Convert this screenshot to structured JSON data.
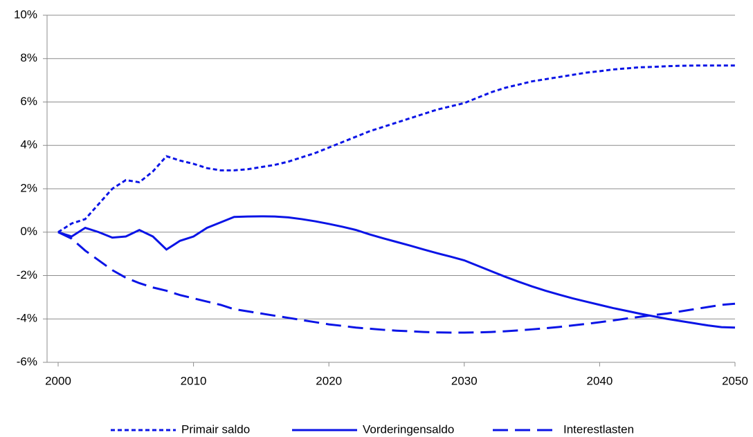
{
  "chart_data": {
    "type": "line",
    "x": [
      2000,
      2001,
      2002,
      2003,
      2004,
      2005,
      2006,
      2007,
      2008,
      2009,
      2010,
      2011,
      2012,
      2013,
      2014,
      2015,
      2016,
      2017,
      2018,
      2019,
      2020,
      2021,
      2022,
      2023,
      2024,
      2025,
      2026,
      2027,
      2028,
      2029,
      2030,
      2031,
      2032,
      2033,
      2034,
      2035,
      2036,
      2037,
      2038,
      2039,
      2040,
      2041,
      2042,
      2043,
      2044,
      2045,
      2046,
      2047,
      2048,
      2049,
      2050
    ],
    "series": [
      {
        "name": "Primair saldo",
        "color": "#0a14e6",
        "dash": "dotted",
        "values": [
          0,
          0.4,
          0.6,
          1.3,
          2.0,
          2.4,
          2.3,
          2.8,
          3.5,
          3.3,
          3.15,
          2.95,
          2.85,
          2.85,
          2.9,
          3.0,
          3.1,
          3.25,
          3.45,
          3.65,
          3.9,
          4.15,
          4.4,
          4.65,
          4.85,
          5.05,
          5.25,
          5.45,
          5.65,
          5.8,
          5.95,
          6.2,
          6.45,
          6.65,
          6.8,
          6.95,
          7.05,
          7.15,
          7.25,
          7.35,
          7.42,
          7.5,
          7.55,
          7.6,
          7.62,
          7.65,
          7.67,
          7.68,
          7.68,
          7.68,
          7.68
        ]
      },
      {
        "name": "Vorderingensaldo",
        "color": "#0a14e6",
        "dash": "solid",
        "values": [
          0,
          -0.2,
          0.2,
          0,
          -0.25,
          -0.2,
          0.1,
          -0.2,
          -0.8,
          -0.4,
          -0.2,
          0.2,
          0.45,
          0.7,
          0.72,
          0.73,
          0.72,
          0.68,
          0.6,
          0.5,
          0.38,
          0.25,
          0.1,
          -0.1,
          -0.28,
          -0.45,
          -0.62,
          -0.8,
          -0.97,
          -1.13,
          -1.3,
          -1.55,
          -1.8,
          -2.05,
          -2.28,
          -2.5,
          -2.7,
          -2.88,
          -3.05,
          -3.2,
          -3.35,
          -3.5,
          -3.63,
          -3.76,
          -3.88,
          -4.0,
          -4.1,
          -4.2,
          -4.3,
          -4.38,
          -4.4
        ]
      },
      {
        "name": "Interestlasten",
        "color": "#0a14e6",
        "dash": "dashed",
        "values": [
          0,
          -0.3,
          -0.85,
          -1.3,
          -1.75,
          -2.1,
          -2.35,
          -2.55,
          -2.7,
          -2.9,
          -3.05,
          -3.2,
          -3.35,
          -3.55,
          -3.65,
          -3.75,
          -3.85,
          -3.95,
          -4.05,
          -4.15,
          -4.25,
          -4.32,
          -4.4,
          -4.45,
          -4.5,
          -4.54,
          -4.57,
          -4.6,
          -4.62,
          -4.63,
          -4.63,
          -4.62,
          -4.6,
          -4.57,
          -4.53,
          -4.48,
          -4.43,
          -4.37,
          -4.3,
          -4.23,
          -4.15,
          -4.07,
          -3.98,
          -3.9,
          -3.82,
          -3.75,
          -3.65,
          -3.55,
          -3.45,
          -3.35,
          -3.3
        ]
      }
    ],
    "xlim": [
      2000,
      2050
    ],
    "xticks": [
      2000,
      2010,
      2020,
      2030,
      2040,
      2050
    ],
    "ylim": [
      -6,
      10
    ],
    "yticks": [
      {
        "value": -6,
        "label": "-6%"
      },
      {
        "value": -4,
        "label": "-4%"
      },
      {
        "value": -2,
        "label": "-2%"
      },
      {
        "value": 0,
        "label": "0%"
      },
      {
        "value": 2,
        "label": "2%"
      },
      {
        "value": 4,
        "label": "4%"
      },
      {
        "value": 6,
        "label": "6%"
      },
      {
        "value": 8,
        "label": "8%"
      },
      {
        "value": 10,
        "label": "10%"
      }
    ],
    "grid": true,
    "legend": "bottom"
  }
}
